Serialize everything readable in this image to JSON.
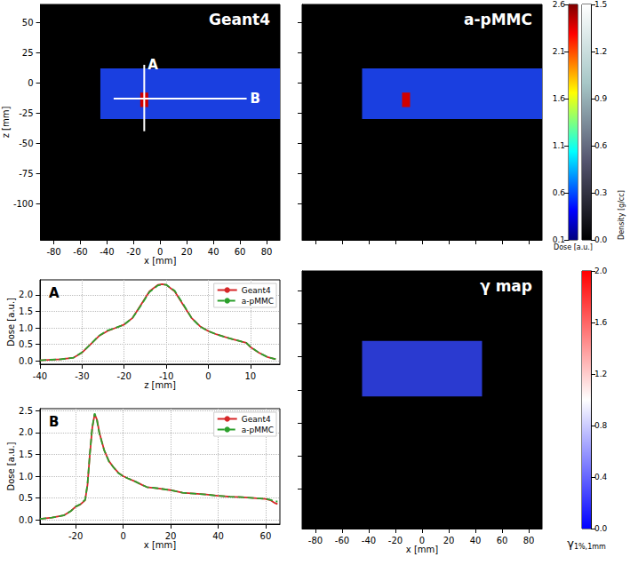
{
  "chart_data": [
    {
      "type": "image",
      "title": "Geant4",
      "xlabel": "x [mm]",
      "ylabel": "z [mm]",
      "xlim": [
        -90,
        90
      ],
      "ylim": [
        -130,
        65
      ],
      "xticks": [
        -80,
        -60,
        -40,
        -20,
        0,
        20,
        40,
        60,
        80
      ],
      "yticks": [
        -100,
        -75,
        -50,
        -25,
        0,
        25,
        50
      ],
      "tick_labels": true,
      "color": "#1a3fe0",
      "beam_region": {
        "x": [
          -45,
          90
        ],
        "z": [
          -30,
          12
        ]
      },
      "hotspot": {
        "x": [
          -15,
          -9
        ],
        "z": [
          -20,
          -8
        ],
        "color": "#d00000"
      },
      "profile_lines": [
        {
          "name": "A",
          "x": [
            -12,
            -12
          ],
          "z": [
            -40,
            15
          ]
        },
        {
          "name": "B",
          "x": [
            -35,
            65
          ],
          "z": [
            -13,
            -13
          ]
        }
      ]
    },
    {
      "type": "image",
      "title": "a-pMMC",
      "xlim": [
        -90,
        90
      ],
      "ylim": [
        -130,
        65
      ],
      "xticks": [
        -80,
        -60,
        -40,
        -20,
        0,
        20,
        40,
        60,
        80
      ],
      "yticks": [
        -100,
        -75,
        -50,
        -25,
        0,
        25,
        50
      ],
      "tick_labels": false,
      "color": "#1a3fe0",
      "beam_region": {
        "x": [
          -45,
          90
        ],
        "z": [
          -30,
          12
        ]
      },
      "hotspot": {
        "x": [
          -15,
          -9
        ],
        "z": [
          -20,
          -8
        ],
        "color": "#d00000"
      }
    },
    {
      "type": "image",
      "title": "γ map",
      "xlabel": "x [mm]",
      "xlim": [
        -90,
        90
      ],
      "ylim": [
        -130,
        65
      ],
      "xticks": [
        -80,
        -60,
        -40,
        -20,
        0,
        20,
        40,
        60,
        80
      ],
      "yticks": [
        -100,
        -75,
        -50,
        -25,
        0,
        25,
        50
      ],
      "tick_labels": "x",
      "color": "#2a3ad0",
      "beam_region": {
        "x": [
          -45,
          45
        ],
        "z": [
          -30,
          12
        ]
      }
    },
    {
      "type": "line",
      "title": "A",
      "xlabel": "z [mm]",
      "ylabel": "Dose [a.u.]",
      "x": [
        -40,
        -35,
        -32,
        -30,
        -28,
        -26,
        -24,
        -22,
        -20,
        -18,
        -16,
        -14,
        -12,
        -11,
        -10,
        -8,
        -6,
        -4,
        -2,
        0,
        2,
        4,
        6,
        8,
        9,
        10,
        12,
        14,
        16
      ],
      "series": [
        {
          "name": "Geant4",
          "color": "#d62728",
          "line_style": "solid",
          "values": [
            0.02,
            0.05,
            0.1,
            0.25,
            0.5,
            0.75,
            0.9,
            1.0,
            1.1,
            1.3,
            1.7,
            2.1,
            2.3,
            2.32,
            2.3,
            2.1,
            1.7,
            1.3,
            1.05,
            0.9,
            0.8,
            0.72,
            0.65,
            0.58,
            0.55,
            0.42,
            0.25,
            0.12,
            0.05
          ]
        },
        {
          "name": "a-pMMC",
          "color": "#2ca02c",
          "line_style": "dashed",
          "values": [
            0.02,
            0.05,
            0.1,
            0.26,
            0.5,
            0.76,
            0.92,
            1.0,
            1.1,
            1.3,
            1.68,
            2.08,
            2.28,
            2.31,
            2.3,
            2.12,
            1.72,
            1.3,
            1.04,
            0.9,
            0.8,
            0.72,
            0.65,
            0.58,
            0.55,
            0.43,
            0.25,
            0.12,
            0.05
          ]
        }
      ],
      "xlim": [
        -40,
        17
      ],
      "ylim": [
        -0.1,
        2.45
      ],
      "xticks": [
        -40,
        -30,
        -20,
        -10,
        0,
        10
      ],
      "yticks": [
        {
          "value": 0,
          "label": "0.0"
        },
        {
          "value": 0.5,
          "label": "0.5"
        },
        {
          "value": 1,
          "label": "1.0"
        },
        {
          "value": 1.5,
          "label": "1.5"
        },
        {
          "value": 2,
          "label": "2.0"
        }
      ],
      "grid": true,
      "legend": "upper right"
    },
    {
      "type": "line",
      "title": "B",
      "xlabel": "x [mm]",
      "ylabel": "Dose [a.u.]",
      "x": [
        -35,
        -30,
        -25,
        -22,
        -20,
        -18,
        -16,
        -15,
        -14,
        -13,
        -12,
        -11,
        -10,
        -8,
        -6,
        -4,
        -2,
        0,
        2,
        5,
        8,
        10,
        15,
        20,
        25,
        30,
        35,
        40,
        45,
        50,
        55,
        60,
        62,
        64,
        65
      ],
      "series": [
        {
          "name": "Geant4",
          "color": "#d62728",
          "line_style": "solid",
          "values": [
            0.02,
            0.05,
            0.1,
            0.2,
            0.3,
            0.35,
            0.45,
            0.8,
            1.5,
            2.1,
            2.42,
            2.3,
            2.0,
            1.6,
            1.35,
            1.2,
            1.08,
            1.0,
            0.95,
            0.88,
            0.8,
            0.75,
            0.72,
            0.68,
            0.62,
            0.6,
            0.58,
            0.55,
            0.53,
            0.52,
            0.5,
            0.48,
            0.45,
            0.38,
            0.36
          ]
        },
        {
          "name": "a-pMMC",
          "color": "#2ca02c",
          "line_style": "dashed",
          "values": [
            0.02,
            0.05,
            0.1,
            0.2,
            0.3,
            0.36,
            0.46,
            0.82,
            1.52,
            2.12,
            2.44,
            2.28,
            1.98,
            1.6,
            1.34,
            1.2,
            1.07,
            1.0,
            0.95,
            0.88,
            0.8,
            0.75,
            0.72,
            0.68,
            0.62,
            0.6,
            0.58,
            0.55,
            0.53,
            0.52,
            0.5,
            0.48,
            0.46,
            0.42,
            0.42
          ]
        }
      ],
      "xlim": [
        -35,
        66
      ],
      "ylim": [
        -0.1,
        2.55
      ],
      "xticks": [
        -20,
        0,
        20,
        40,
        60
      ],
      "yticks": [
        {
          "value": 0,
          "label": "0.0"
        },
        {
          "value": 0.5,
          "label": "0.5"
        },
        {
          "value": 1,
          "label": "1.0"
        },
        {
          "value": 1.5,
          "label": "1.5"
        },
        {
          "value": 2,
          "label": "2.0"
        },
        {
          "value": 2.5,
          "label": "2.5"
        }
      ],
      "grid": true,
      "legend": "upper right"
    },
    {
      "type": "colorbar",
      "label": "Dose [a.u.]",
      "range": [
        0.1,
        2.6
      ],
      "ticks": [
        0.1,
        0.6,
        1.1,
        1.6,
        2.1,
        2.6
      ],
      "colors": [
        "#00007f",
        "#0000ff",
        "#007fff",
        "#00ffff",
        "#7fff7f",
        "#ffff00",
        "#ff7f00",
        "#ff0000",
        "#7f0000"
      ]
    },
    {
      "type": "colorbar",
      "label": "Density [g/cc]",
      "range": [
        0,
        1.5
      ],
      "ticks": [
        {
          "value": 0,
          "label": "0.0"
        },
        {
          "value": 0.3,
          "label": "0.3"
        },
        {
          "value": 0.6,
          "label": "0.6"
        },
        {
          "value": 0.9,
          "label": "0.9"
        },
        {
          "value": 1.2,
          "label": "1.2"
        },
        {
          "value": 1.5,
          "label": "1.5"
        }
      ],
      "colors": [
        "#000000",
        "#54546e",
        "#a7c7c7",
        "#ffffff"
      ]
    },
    {
      "type": "colorbar",
      "label": {
        "symbol": "γ",
        "subscript": "1%,1mm"
      },
      "range": [
        0,
        2
      ],
      "ticks": [
        {
          "value": 0,
          "label": "0.0"
        },
        {
          "value": 0.4,
          "label": "0.4"
        },
        {
          "value": 0.8,
          "label": "0.8"
        },
        {
          "value": 1.2,
          "label": "1.2"
        },
        {
          "value": 1.6,
          "label": "1.6"
        },
        {
          "value": 2,
          "label": "2.0"
        }
      ],
      "colors": [
        "#0000ff",
        "#ffffff",
        "#ff0000"
      ]
    }
  ]
}
